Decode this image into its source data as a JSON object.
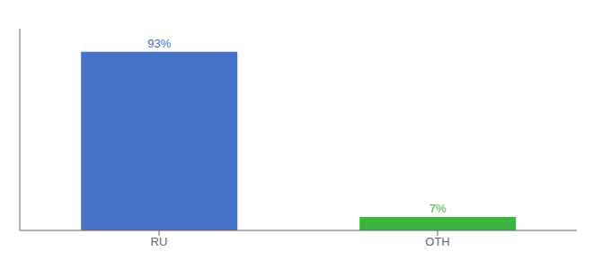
{
  "chart_data": {
    "type": "bar",
    "categories": [
      "RU",
      "OTH"
    ],
    "values": [
      93,
      7
    ],
    "value_labels": [
      "93%",
      "7%"
    ],
    "colors": [
      "#4472c4",
      "#3cb540"
    ],
    "ylim": [
      0,
      105
    ],
    "data_labels": true,
    "tick_labels": "x"
  }
}
